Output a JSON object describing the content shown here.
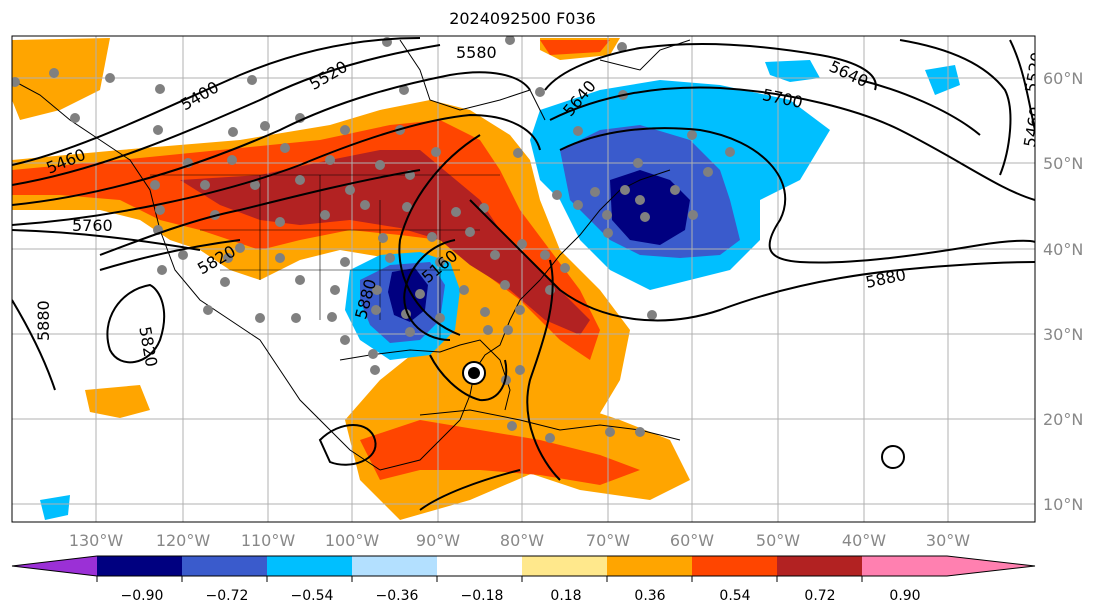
{
  "title": "2024092500 F036",
  "lon_labels": [
    "130°W",
    "120°W",
    "110°W",
    "100°W",
    "90°W",
    "80°W",
    "70°W",
    "60°W",
    "50°W",
    "40°W",
    "30°W"
  ],
  "lat_labels": [
    "60°N",
    "50°N",
    "40°N",
    "30°N",
    "20°N",
    "10°N"
  ],
  "colorbar": {
    "colors": [
      "#9b30d6",
      "#000080",
      "#3a5bcc",
      "#00bfff",
      "#b3e0ff",
      "#ffffff",
      "#ffe88c",
      "#ffa500",
      "#ff4500",
      "#b22222",
      "#ff80b0"
    ],
    "tick_labels": [
      "−0.90",
      "−0.72",
      "−0.54",
      "−0.36",
      "−0.18",
      "0.18",
      "0.36",
      "0.54",
      "0.72",
      "0.90"
    ]
  },
  "contour_labels": [
    "5400",
    "5520",
    "5580",
    "5640",
    "5640",
    "5700",
    "5520",
    "5460",
    "5460",
    "5760",
    "5820",
    "5160",
    "5880",
    "5820",
    "5880",
    "5880"
  ]
}
